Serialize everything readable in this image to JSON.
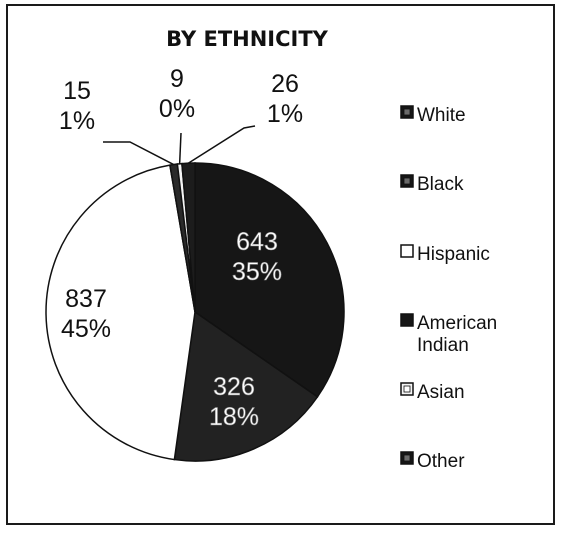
{
  "chart_data": {
    "type": "pie",
    "title": "BY ETHNICITY",
    "categories": [
      "White",
      "Black",
      "Hispanic",
      "American Indian",
      "Asian",
      "Other"
    ],
    "values": [
      643,
      326,
      837,
      15,
      9,
      26
    ],
    "percent_labels": [
      "35%",
      "18%",
      "45%",
      "1%",
      "0%",
      "1%"
    ],
    "legend_lines": [
      [
        "White"
      ],
      [
        "Black"
      ],
      [
        "Hispanic"
      ],
      [
        "American",
        "Indian"
      ],
      [
        "Asian"
      ],
      [
        "Other"
      ]
    ],
    "legend_position": "right",
    "colors": [
      "#161616",
      "#222222",
      "#ffffff",
      "#2a2a2a",
      "#f4f4f4",
      "#1c1c1c"
    ],
    "legend_swatch_style": [
      "dark-inner-box",
      "dark-inner-box",
      "hollow",
      "dark-texture",
      "light-inner-box",
      "dark-inner-box"
    ]
  }
}
